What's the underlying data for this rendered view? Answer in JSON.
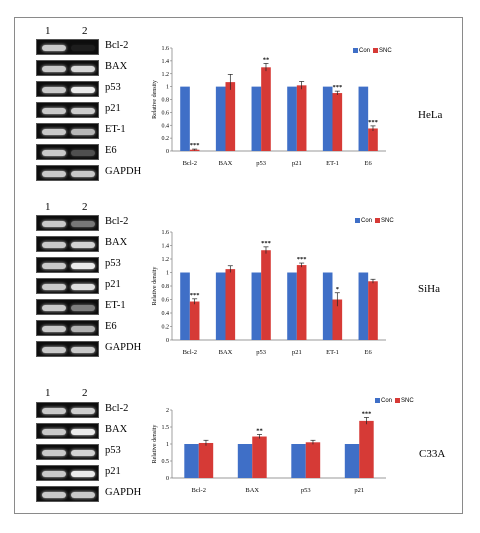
{
  "colors": {
    "con": "#3f6fc7",
    "snc": "#d63a36",
    "error": "#222222"
  },
  "panels": [
    {
      "cell_line": "HeLa",
      "lanes": [
        "1",
        "2"
      ],
      "gel_labels": [
        "Bcl-2",
        "BAX",
        "p53",
        "p21",
        "ET-1",
        "E6",
        "GAPDH"
      ]
    },
    {
      "cell_line": "SiHa",
      "lanes": [
        "1",
        "2"
      ],
      "gel_labels": [
        "Bcl-2",
        "BAX",
        "p53",
        "p21",
        "ET-1",
        "E6",
        "GAPDH"
      ]
    },
    {
      "cell_line": "C33A",
      "lanes": [
        "1",
        "2"
      ],
      "gel_labels": [
        "Bcl-2",
        "BAX",
        "p53",
        "p21",
        "GAPDH"
      ]
    }
  ],
  "chart_data": [
    {
      "type": "bar",
      "categories": [
        "Bcl-2",
        "BAX",
        "p53",
        "p21",
        "ET-1",
        "E6"
      ],
      "ylabel": "Relative density",
      "ylim": [
        0,
        1.6
      ],
      "yticks": [
        "0",
        "0.2",
        "0.4",
        "0.6",
        "0.8",
        "1",
        "1.2",
        "1.4",
        "1.6"
      ],
      "series": [
        {
          "name": "Con",
          "values": [
            1,
            1,
            1,
            1,
            1,
            1
          ],
          "errors": [
            0,
            0,
            0,
            0,
            0,
            0
          ]
        },
        {
          "name": "SNC",
          "values": [
            0.02,
            1.07,
            1.3,
            1.02,
            0.9,
            0.35
          ],
          "errors": [
            0.01,
            0.12,
            0.06,
            0.06,
            0.03,
            0.04
          ]
        }
      ],
      "significance": [
        "***",
        "",
        "**",
        "",
        "***",
        "***"
      ],
      "legend": "top-right",
      "grid": false
    },
    {
      "type": "bar",
      "categories": [
        "Bcl-2",
        "BAX",
        "p53",
        "p21",
        "ET-1",
        "E6"
      ],
      "ylabel": "Relative density",
      "ylim": [
        0,
        1.6
      ],
      "yticks": [
        "0",
        "0.2",
        "0.4",
        "0.6",
        "0.8",
        "1",
        "1.2",
        "1.4",
        "1.6"
      ],
      "series": [
        {
          "name": "Con",
          "values": [
            1,
            1,
            1,
            1,
            1,
            1
          ],
          "errors": [
            0,
            0,
            0,
            0,
            0,
            0
          ]
        },
        {
          "name": "SNC",
          "values": [
            0.57,
            1.05,
            1.33,
            1.11,
            0.6,
            0.87
          ],
          "errors": [
            0.04,
            0.05,
            0.05,
            0.03,
            0.1,
            0.03
          ]
        }
      ],
      "significance": [
        "***",
        "",
        "***",
        "***",
        "*",
        ""
      ],
      "legend": "top-right",
      "grid": false
    },
    {
      "type": "bar",
      "categories": [
        "Bcl-2",
        "BAX",
        "p53",
        "p21"
      ],
      "ylabel": "Relative density",
      "ylim": [
        0,
        2
      ],
      "yticks": [
        "0",
        "0.5",
        "1",
        "1.5",
        "2"
      ],
      "series": [
        {
          "name": "Con",
          "values": [
            1,
            1,
            1,
            1
          ],
          "errors": [
            0,
            0,
            0,
            0
          ]
        },
        {
          "name": "SNC",
          "values": [
            1.03,
            1.22,
            1.05,
            1.68
          ],
          "errors": [
            0.08,
            0.06,
            0.06,
            0.1
          ]
        }
      ],
      "significance": [
        "",
        "**",
        "",
        "***"
      ],
      "legend": "top-right",
      "grid": false
    }
  ]
}
